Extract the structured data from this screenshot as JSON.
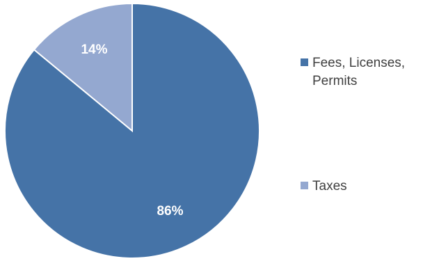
{
  "chart_data": {
    "type": "pie",
    "title": "",
    "categories": [
      "Fees, Licenses, Permits",
      "Taxes"
    ],
    "values": [
      86,
      14
    ],
    "data_labels": [
      "86%",
      "14%"
    ],
    "colors": [
      "#4573A7",
      "#94A8D0"
    ],
    "legend_placement": "right"
  },
  "legend": {
    "items": [
      {
        "label": "Fees, Licenses, Permits",
        "color": "#4573A7"
      },
      {
        "label": "Taxes",
        "color": "#94A8D0"
      }
    ]
  }
}
